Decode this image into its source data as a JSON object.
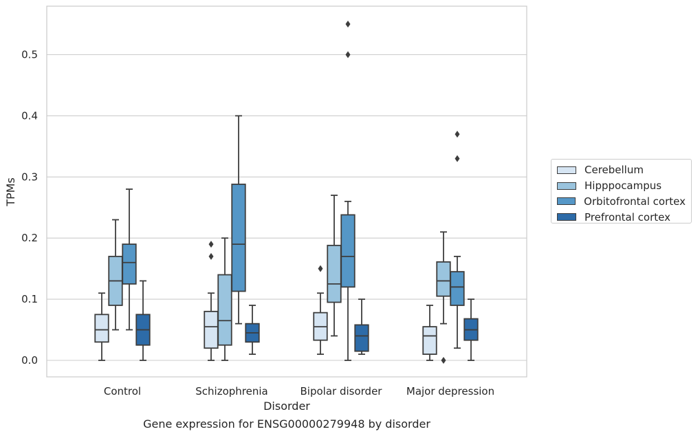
{
  "chart_data": {
    "type": "box",
    "caption": "Gene expression for ENSG00000279948 by disorder",
    "xlabel": "Disorder",
    "ylabel": "TPMs",
    "ylim": [
      -0.026,
      0.578
    ],
    "yticks": [
      "0.0",
      "0.1",
      "0.2",
      "0.3",
      "0.4",
      "0.5"
    ],
    "grid": true,
    "legend_position": "right",
    "categories": [
      "Control",
      "Schizophrenia",
      "Bipolar disorder",
      "Major depression"
    ],
    "series": [
      {
        "name": "Cerebellum",
        "color": "#d6e5f3",
        "boxes": [
          {
            "whisker_low": 0.0,
            "q1": 0.03,
            "median": 0.05,
            "q3": 0.075,
            "whisker_high": 0.11,
            "outliers": []
          },
          {
            "whisker_low": 0.0,
            "q1": 0.02,
            "median": 0.055,
            "q3": 0.08,
            "whisker_high": 0.11,
            "outliers": [
              0.19,
              0.17
            ]
          },
          {
            "whisker_low": 0.01,
            "q1": 0.033,
            "median": 0.055,
            "q3": 0.078,
            "whisker_high": 0.11,
            "outliers": [
              0.15
            ]
          },
          {
            "whisker_low": 0.0,
            "q1": 0.01,
            "median": 0.04,
            "q3": 0.055,
            "whisker_high": 0.09,
            "outliers": []
          }
        ]
      },
      {
        "name": "Hipppocampus",
        "color": "#9ac4de",
        "boxes": [
          {
            "whisker_low": 0.05,
            "q1": 0.09,
            "median": 0.13,
            "q3": 0.17,
            "whisker_high": 0.23,
            "outliers": []
          },
          {
            "whisker_low": 0.0,
            "q1": 0.025,
            "median": 0.065,
            "q3": 0.14,
            "whisker_high": 0.2,
            "outliers": []
          },
          {
            "whisker_low": 0.04,
            "q1": 0.095,
            "median": 0.125,
            "q3": 0.188,
            "whisker_high": 0.27,
            "outliers": []
          },
          {
            "whisker_low": 0.06,
            "q1": 0.105,
            "median": 0.13,
            "q3": 0.161,
            "whisker_high": 0.21,
            "outliers": [
              0.0
            ]
          }
        ]
      },
      {
        "name": "Orbitofrontal cortex",
        "color": "#5597c7",
        "boxes": [
          {
            "whisker_low": 0.05,
            "q1": 0.125,
            "median": 0.16,
            "q3": 0.19,
            "whisker_high": 0.28,
            "outliers": []
          },
          {
            "whisker_low": 0.06,
            "q1": 0.113,
            "median": 0.19,
            "q3": 0.288,
            "whisker_high": 0.4,
            "outliers": []
          },
          {
            "whisker_low": 0.0,
            "q1": 0.12,
            "median": 0.17,
            "q3": 0.238,
            "whisker_high": 0.26,
            "outliers": [
              0.55,
              0.5
            ]
          },
          {
            "whisker_low": 0.02,
            "q1": 0.09,
            "median": 0.12,
            "q3": 0.145,
            "whisker_high": 0.17,
            "outliers": [
              0.37,
              0.33
            ]
          }
        ]
      },
      {
        "name": "Prefrontal cortex",
        "color": "#2d6ba8",
        "boxes": [
          {
            "whisker_low": 0.0,
            "q1": 0.025,
            "median": 0.05,
            "q3": 0.075,
            "whisker_high": 0.13,
            "outliers": []
          },
          {
            "whisker_low": 0.01,
            "q1": 0.03,
            "median": 0.045,
            "q3": 0.06,
            "whisker_high": 0.09,
            "outliers": []
          },
          {
            "whisker_low": 0.01,
            "q1": 0.015,
            "median": 0.04,
            "q3": 0.058,
            "whisker_high": 0.1,
            "outliers": []
          },
          {
            "whisker_low": 0.0,
            "q1": 0.033,
            "median": 0.05,
            "q3": 0.068,
            "whisker_high": 0.1,
            "outliers": []
          }
        ]
      }
    ]
  }
}
